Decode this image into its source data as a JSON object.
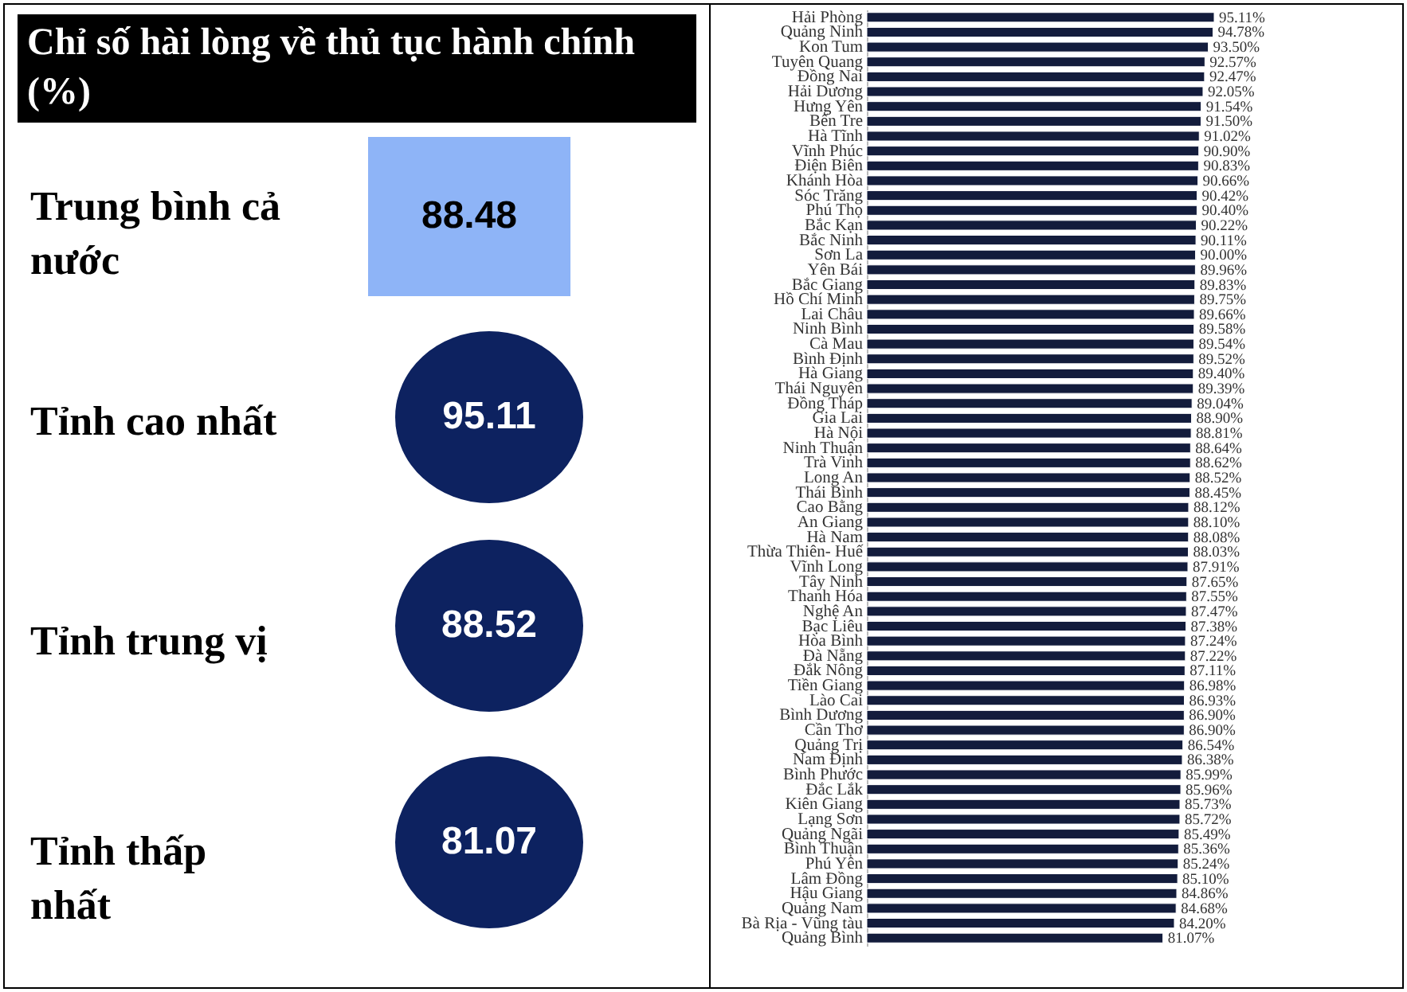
{
  "chart_data": [
    {
      "type": "other",
      "title": "Chỉ số hài lòng về thủ tục hành chính (%)",
      "annotations": [
        "Trung bình cả nước",
        "88.48",
        "Tỉnh cao nhất",
        "95.11",
        "Tỉnh trung vị",
        "88.52",
        "Tỉnh thấp nhất",
        "81.07"
      ],
      "colors": [
        "#8eb4f7",
        "#0d2260",
        "#0d2260",
        "#0d2260"
      ]
    },
    {
      "type": "bar",
      "orientation": "horizontal",
      "tick_labels": "y",
      "color": "#131c3c",
      "categories": [
        "Hải Phòng",
        "Quảng Ninh",
        "Kon Tum",
        "Tuyên Quang",
        "Đồng Nai",
        "Hải Dương",
        "Hưng Yên",
        "Bến Tre",
        "Hà Tĩnh",
        "Vĩnh Phúc",
        "Điện Biên",
        "Khánh Hòa",
        "Sóc Trăng",
        "Phú Thọ",
        "Bắc Kạn",
        "Bắc Ninh",
        "Sơn La",
        "Yên Bái",
        "Bắc Giang",
        "Hồ Chí Minh",
        "Lai Châu",
        "Ninh Bình",
        "Cà Mau",
        "Bình Định",
        "Hà Giang",
        "Thái Nguyên",
        "Đồng Tháp",
        "Gia Lai",
        "Hà Nội",
        "Ninh Thuận",
        "Trà Vinh",
        "Long An",
        "Thái Bình",
        "Cao Bằng",
        "An Giang",
        "Hà Nam",
        "Thừa Thiên- Huế",
        "Vĩnh Long",
        "Tây Ninh",
        "Thanh Hóa",
        "Nghệ An",
        "Bạc Liêu",
        "Hòa Bình",
        "Đà Nẵng",
        "Đắk Nông",
        "Tiền Giang",
        "Lào Cai",
        "Bình Dương",
        "Cần Thơ",
        "Quảng Trị",
        "Nam Định",
        "Bình Phước",
        "Đắc Lắk",
        "Kiên Giang",
        "Lạng Sơn",
        "Quảng Ngãi",
        "Bình Thuận",
        "Phú Yên",
        "Lâm Đồng",
        "Hậu Giang",
        "Quảng Nam",
        "Bà Rịa - Vũng tàu",
        "Quảng Bình"
      ],
      "values": [
        95.11,
        94.78,
        93.5,
        92.57,
        92.47,
        92.05,
        91.54,
        91.5,
        91.02,
        90.9,
        90.83,
        90.66,
        90.42,
        90.4,
        90.22,
        90.11,
        90.0,
        89.96,
        89.83,
        89.75,
        89.66,
        89.58,
        89.54,
        89.52,
        89.4,
        89.39,
        89.04,
        88.9,
        88.81,
        88.64,
        88.62,
        88.52,
        88.45,
        88.12,
        88.1,
        88.08,
        88.03,
        87.91,
        87.65,
        87.55,
        87.47,
        87.38,
        87.24,
        87.22,
        87.11,
        86.98,
        86.93,
        86.9,
        86.9,
        86.54,
        86.38,
        85.99,
        85.96,
        85.73,
        85.72,
        85.49,
        85.36,
        85.24,
        85.1,
        84.86,
        84.68,
        84.2,
        81.07
      ],
      "value_labels": [
        "95.11%",
        "94.78%",
        "93.50%",
        "92.57%",
        "92.47%",
        "92.05%",
        "91.54%",
        "91.50%",
        "91.02%",
        "90.90%",
        "90.83%",
        "90.66%",
        "90.42%",
        "90.40%",
        "90.22%",
        "90.11%",
        "90.00%",
        "89.96%",
        "89.83%",
        "89.75%",
        "89.66%",
        "89.58%",
        "89.54%",
        "89.52%",
        "89.40%",
        "89.39%",
        "89.04%",
        "88.90%",
        "88.81%",
        "88.64%",
        "88.62%",
        "88.52%",
        "88.45%",
        "88.12%",
        "88.10%",
        "88.08%",
        "88.03%",
        "87.91%",
        "87.65%",
        "87.55%",
        "87.47%",
        "87.38%",
        "87.24%",
        "87.22%",
        "87.11%",
        "86.98%",
        "86.93%",
        "86.90%",
        "86.90%",
        "86.54%",
        "86.38%",
        "85.99%",
        "85.96%",
        "85.73%",
        "85.72%",
        "85.49%",
        "85.36%",
        "85.24%",
        "85.10%",
        "84.86%",
        "84.68%",
        "84.20%",
        "81.07%"
      ]
    }
  ]
}
